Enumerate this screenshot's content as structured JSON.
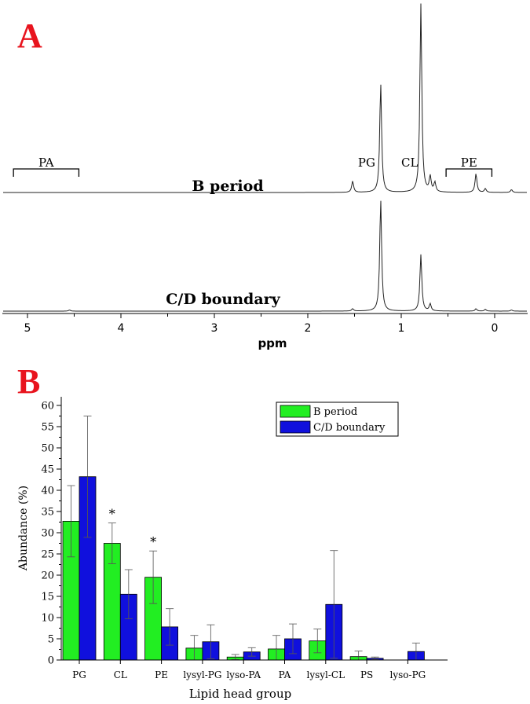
{
  "panels": {
    "a_label": "A",
    "b_label": "B"
  },
  "colors": {
    "b_period": "#22ee22",
    "cd_boundary": "#1010dd",
    "letter": "#e8141e"
  },
  "chart_data": [
    {
      "type": "line",
      "title": "",
      "xlabel": "ppm",
      "ylabel": "",
      "xlim": [
        5.3,
        -0.35
      ],
      "x_reversed": true,
      "x_ticks": [
        "5",
        "4",
        "3",
        "2",
        "1",
        "0"
      ],
      "series": [
        {
          "name": "B period",
          "peaks": [
            {
              "ppm": 1.52,
              "rel": 0.06
            },
            {
              "ppm": 1.22,
              "rel": 0.58
            },
            {
              "ppm": 0.79,
              "rel": 1.0
            },
            {
              "ppm": 0.69,
              "rel": 0.08
            },
            {
              "ppm": 0.64,
              "rel": 0.05
            },
            {
              "ppm": 0.2,
              "rel": 0.1
            },
            {
              "ppm": 0.1,
              "rel": 0.02
            },
            {
              "ppm": -0.18,
              "rel": 0.015
            }
          ]
        },
        {
          "name": "C/D boundary",
          "peaks": [
            {
              "ppm": 4.55,
              "rel": 0.01
            },
            {
              "ppm": 1.52,
              "rel": 0.02
            },
            {
              "ppm": 1.22,
              "rel": 0.95
            },
            {
              "ppm": 0.79,
              "rel": 0.48
            },
            {
              "ppm": 0.69,
              "rel": 0.06
            },
            {
              "ppm": 0.2,
              "rel": 0.02
            },
            {
              "ppm": 0.1,
              "rel": 0.015
            },
            {
              "ppm": -0.18,
              "rel": 0.01
            }
          ]
        }
      ],
      "annotations": [
        {
          "label": "PA",
          "bracket": [
            5.15,
            4.45
          ]
        },
        {
          "label": "PG",
          "at": 1.37
        },
        {
          "label": "CL",
          "at": 0.91
        },
        {
          "label": "PE",
          "bracket": [
            0.52,
            0.03
          ]
        }
      ]
    },
    {
      "type": "bar",
      "title": "",
      "xlabel": "Lipid head group",
      "ylabel": "Abundance (%)",
      "ylim": [
        0,
        62
      ],
      "y_ticks": [
        0,
        5,
        10,
        15,
        20,
        25,
        30,
        35,
        40,
        45,
        50,
        55,
        60
      ],
      "categories": [
        "PG",
        "CL",
        "PE",
        "lysyl-PG",
        "lyso-PA",
        "PA",
        "lysyl-CL",
        "PS",
        "lyso-PG"
      ],
      "series": [
        {
          "name": "B period",
          "values": [
            32.7,
            27.5,
            19.5,
            2.8,
            0.7,
            2.6,
            4.5,
            0.8,
            0.0
          ],
          "errors": [
            8.4,
            4.8,
            6.2,
            3.0,
            0.6,
            3.2,
            2.8,
            1.3,
            0.0
          ]
        },
        {
          "name": "C/D boundary",
          "values": [
            43.2,
            15.5,
            7.8,
            4.3,
            1.9,
            5.0,
            13.1,
            0.4,
            2.0
          ],
          "errors": [
            14.3,
            5.8,
            4.3,
            4.0,
            1.0,
            3.5,
            12.7,
            0.3,
            2.0
          ]
        }
      ],
      "significance": [
        {
          "category": "CL",
          "mark": "*"
        },
        {
          "category": "PE",
          "mark": "*"
        }
      ],
      "legend_position": "top-right",
      "grid": false
    }
  ]
}
